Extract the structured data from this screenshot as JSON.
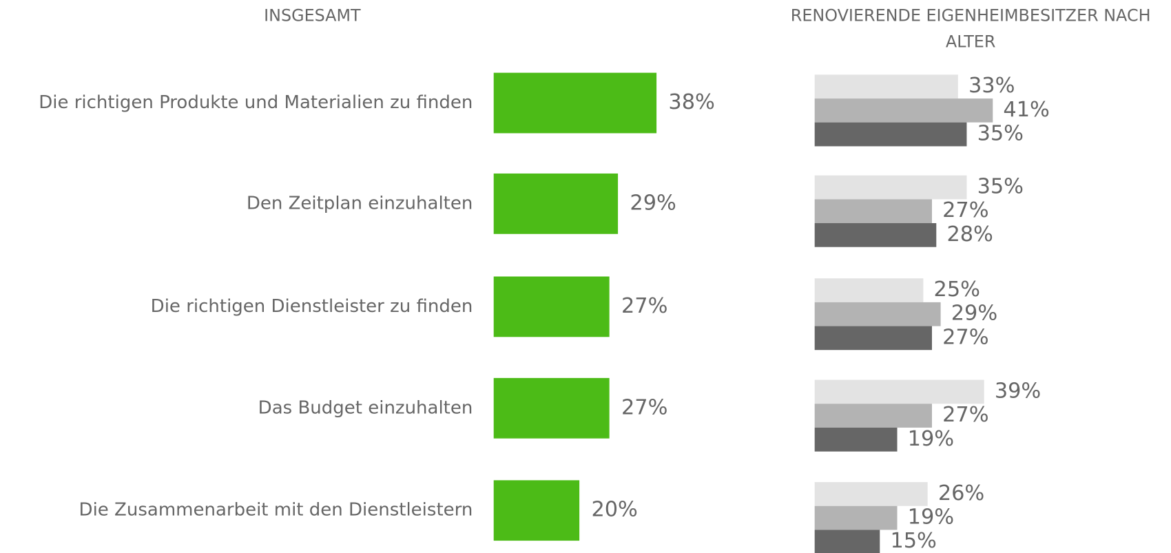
{
  "chart_data": [
    {
      "type": "hbar",
      "title": "INSGESAMT",
      "categories": [
        "Die richtigen Produkte und Materialien zu finden",
        "Den Zeitplan einzuhalten",
        "Die richtigen Dienstleister zu finden",
        "Das Budget einzuhalten",
        "Die Zusammenarbeit mit den Dienstleistern"
      ],
      "values": [
        38,
        29,
        27,
        27,
        20
      ],
      "value_labels": [
        "38%",
        "29%",
        "27%",
        "27%",
        "20%"
      ],
      "color": "#4cbb17"
    },
    {
      "type": "grouped-hbar",
      "title": "RENOVIERENDE EIGENHEIMBESITZER NACH ALTER",
      "series": [
        {
          "color": "#e3e3e3",
          "values": [
            33,
            35,
            25,
            39,
            26
          ],
          "value_labels": [
            "33%",
            "35%",
            "25%",
            "39%",
            "26%"
          ]
        },
        {
          "color": "#b3b3b3",
          "values": [
            41,
            27,
            29,
            27,
            19
          ],
          "value_labels": [
            "41%",
            "27%",
            "29%",
            "27%",
            "19%"
          ]
        },
        {
          "color": "#666666",
          "values": [
            35,
            28,
            27,
            19,
            15
          ],
          "value_labels": [
            "35%",
            "28%",
            "27%",
            "19%",
            "15%"
          ]
        }
      ]
    }
  ]
}
